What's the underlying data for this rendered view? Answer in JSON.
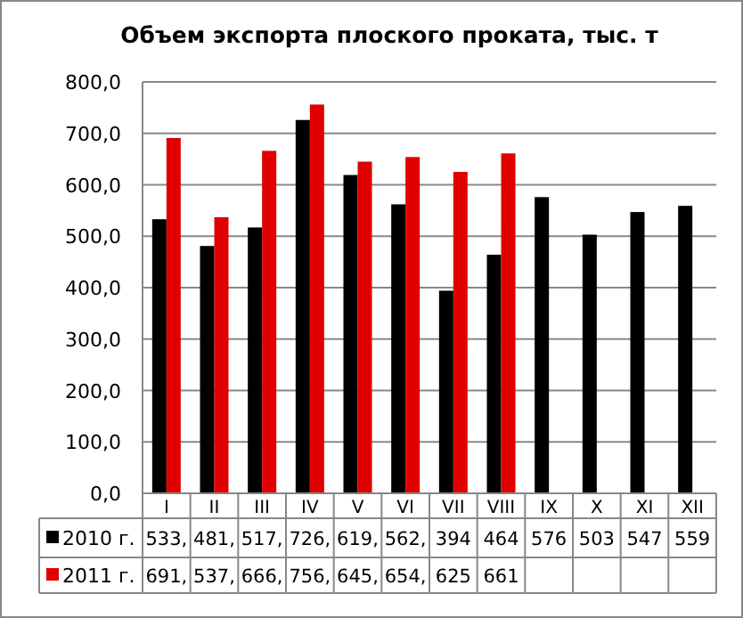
{
  "chart_data": {
    "type": "bar",
    "title": "Объем экспорта плоского проката, тыс. т",
    "categories": [
      "I",
      "II",
      "III",
      "IV",
      "V",
      "VI",
      "VII",
      "VIII",
      "IX",
      "X",
      "XI",
      "XII"
    ],
    "series": [
      {
        "name": "2010 г.",
        "color": "#000000",
        "values": [
          533,
          481,
          517,
          726,
          619,
          562,
          394,
          464,
          576,
          503,
          547,
          559
        ],
        "value_labels": [
          "533,",
          "481,",
          "517,",
          "726,",
          "619,",
          "562,",
          "394",
          "464",
          "576",
          "503",
          "547",
          "559"
        ]
      },
      {
        "name": "2011 г.",
        "color": "#e00000",
        "values": [
          691,
          537,
          666,
          756,
          645,
          654,
          625,
          661,
          null,
          null,
          null,
          null
        ],
        "value_labels": [
          "691,",
          "537,",
          "666,",
          "756,",
          "645,",
          "654,",
          "625",
          "661",
          null,
          null,
          null,
          null
        ]
      }
    ],
    "ylim": [
      0,
      800
    ],
    "yticks": [
      {
        "value": 0,
        "label": "0,0"
      },
      {
        "value": 100,
        "label": "100,0"
      },
      {
        "value": 200,
        "label": "200,0"
      },
      {
        "value": 300,
        "label": "300,0"
      },
      {
        "value": 400,
        "label": "400,0"
      },
      {
        "value": 500,
        "label": "500,0"
      },
      {
        "value": 600,
        "label": "600,0"
      },
      {
        "value": 700,
        "label": "700,0"
      },
      {
        "value": 800,
        "label": "800,0"
      }
    ],
    "grid": "y",
    "legend": "bottom"
  }
}
